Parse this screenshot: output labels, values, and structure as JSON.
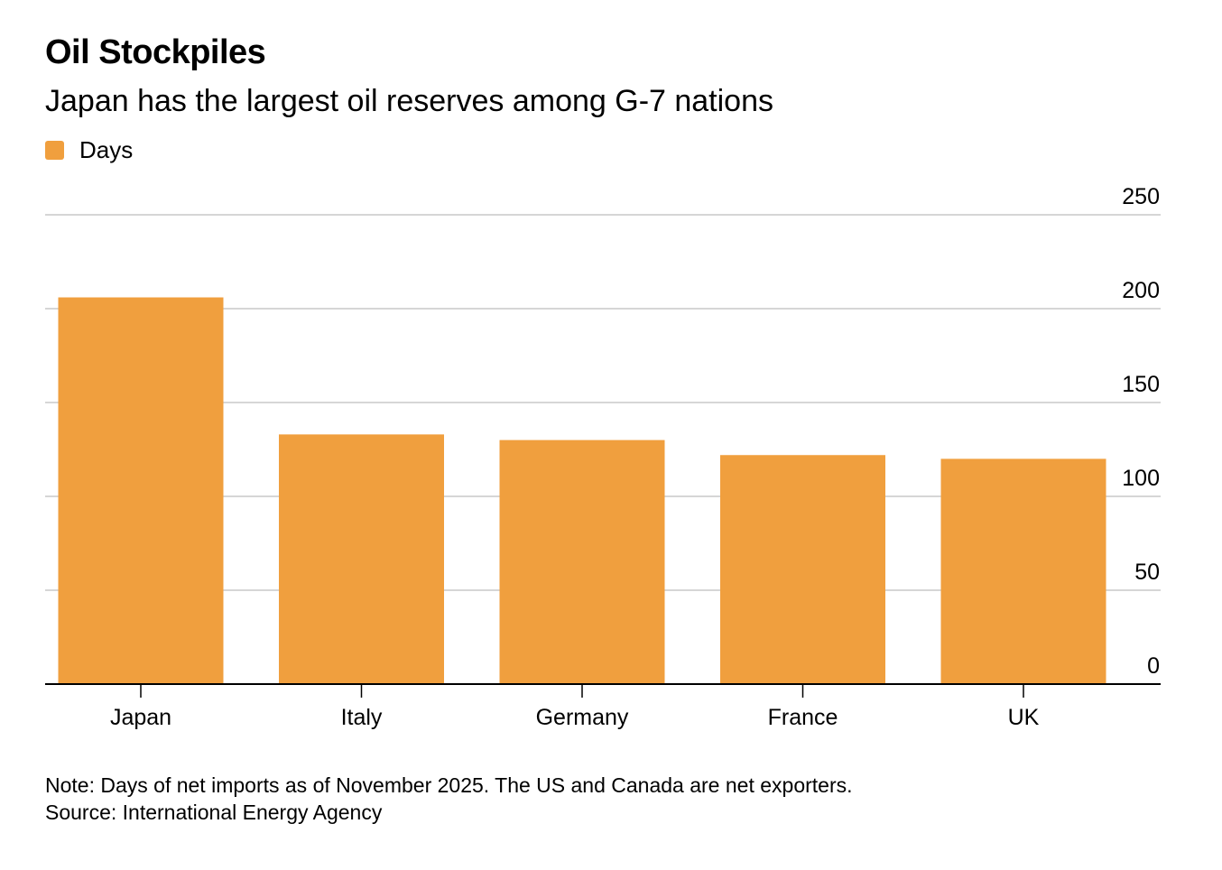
{
  "title": "Oil Stockpiles",
  "subtitle": "Japan has the largest oil reserves among G-7 nations",
  "colors": {
    "bar": "#F09F3E",
    "grid": "#C8C8C8",
    "axis": "#000000"
  },
  "chart_data": {
    "type": "bar",
    "categories": [
      "Japan",
      "Italy",
      "Germany",
      "France",
      "UK"
    ],
    "series": [
      {
        "name": "Days",
        "values": [
          206,
          133,
          130,
          122,
          120
        ]
      }
    ],
    "ylim": [
      0,
      250
    ],
    "yticks": [
      0,
      50,
      100,
      150,
      200,
      250
    ],
    "y_axis_side": "right",
    "grid": true,
    "legend_position": "top-left",
    "xlabel": "",
    "ylabel": ""
  },
  "note": "Note: Days of net imports as of November 2025. The US and Canada are net exporters.",
  "source": "Source: International Energy Agency"
}
